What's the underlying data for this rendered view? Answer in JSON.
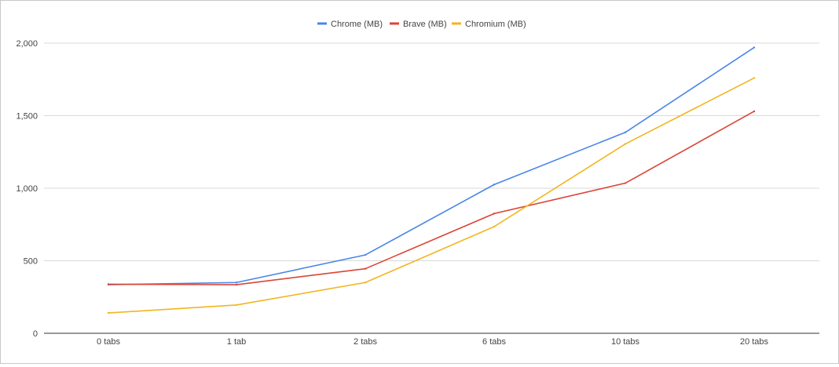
{
  "chart_data": {
    "type": "line",
    "title": "",
    "xlabel": "",
    "ylabel": "",
    "categories": [
      "0 tabs",
      "1 tab",
      "2 tabs",
      "6 tabs",
      "10 tabs",
      "20 tabs"
    ],
    "y_ticks": [
      0,
      500,
      1000,
      1500,
      2000
    ],
    "y_tick_labels": [
      "0",
      "500",
      "1,000",
      "1,500",
      "2,000"
    ],
    "ylim": [
      0,
      2000
    ],
    "grid": true,
    "legend_position": "top-center",
    "series": [
      {
        "name": "Chrome (MB)",
        "color": "#4a86e8",
        "values": [
          335,
          350,
          540,
          1025,
          1385,
          1970
        ]
      },
      {
        "name": "Brave (MB)",
        "color": "#db4437",
        "values": [
          338,
          335,
          445,
          825,
          1035,
          1530
        ]
      },
      {
        "name": "Chromium (MB)",
        "color": "#f2b51f",
        "values": [
          140,
          195,
          350,
          735,
          1305,
          1760
        ]
      }
    ]
  }
}
